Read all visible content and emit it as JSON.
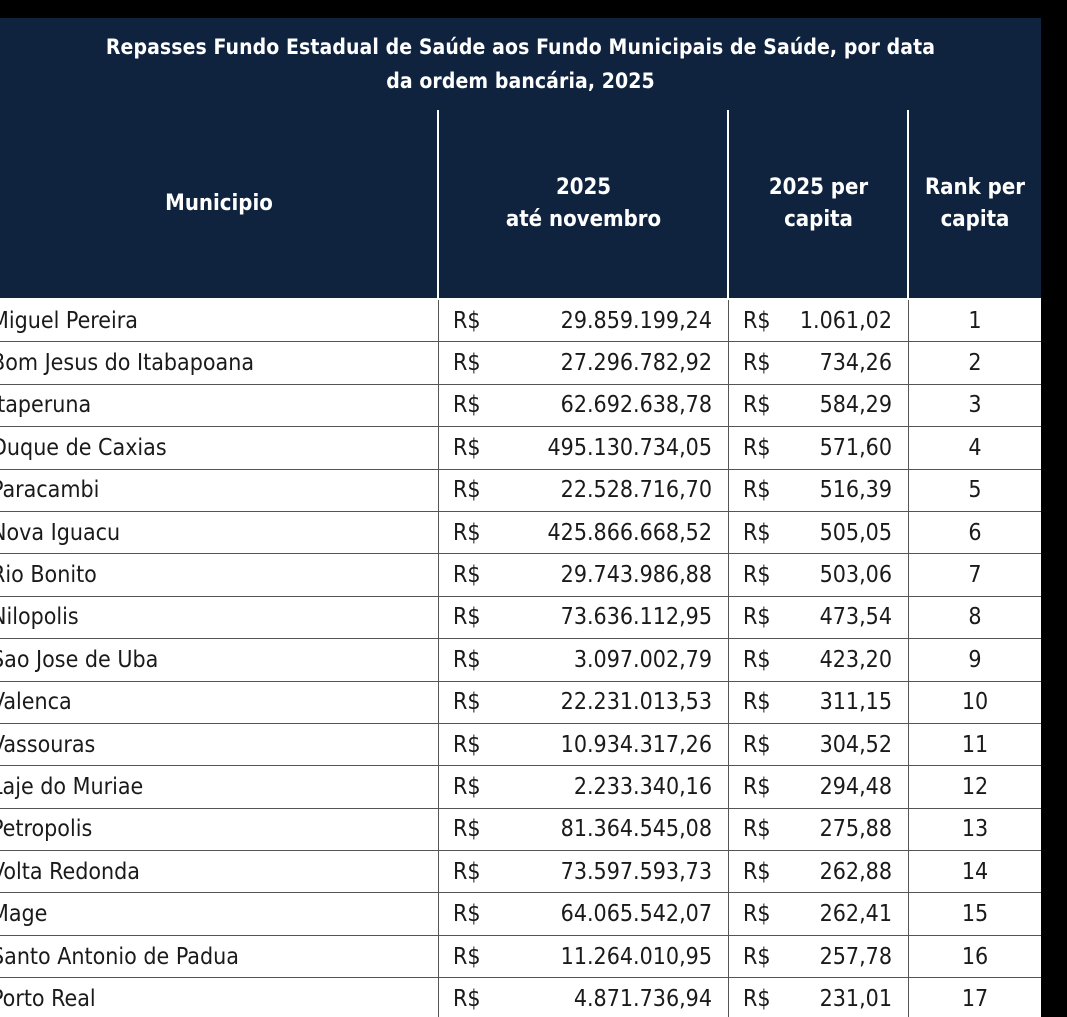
{
  "title_line1": "Repasses Fundo Estadual de Saúde aos Fundo Municipais de Saúde, por data",
  "title_line2": "da ordem bancária, 2025",
  "columns": {
    "municipio": "Municipio",
    "total": "2025\naté novembro",
    "per_capita": "2025 per\ncapita",
    "rank": "Rank per\ncapita"
  },
  "currency": "R$",
  "rows": [
    {
      "municipio": "Miguel Pereira",
      "total": "29.859.199,24",
      "per_capita": "1.061,02",
      "rank": "1"
    },
    {
      "municipio": "Bom Jesus do Itabapoana",
      "total": "27.296.782,92",
      "per_capita": "734,26",
      "rank": "2"
    },
    {
      "municipio": "Itaperuna",
      "total": "62.692.638,78",
      "per_capita": "584,29",
      "rank": "3"
    },
    {
      "municipio": "Duque de Caxias",
      "total": "495.130.734,05",
      "per_capita": "571,60",
      "rank": "4"
    },
    {
      "municipio": "Paracambi",
      "total": "22.528.716,70",
      "per_capita": "516,39",
      "rank": "5"
    },
    {
      "municipio": "Nova Iguacu",
      "total": "425.866.668,52",
      "per_capita": "505,05",
      "rank": "6"
    },
    {
      "municipio": "Rio Bonito",
      "total": "29.743.986,88",
      "per_capita": "503,06",
      "rank": "7"
    },
    {
      "municipio": "Nilopolis",
      "total": "73.636.112,95",
      "per_capita": "473,54",
      "rank": "8"
    },
    {
      "municipio": "Sao Jose de Uba",
      "total": "3.097.002,79",
      "per_capita": "423,20",
      "rank": "9"
    },
    {
      "municipio": "Valenca",
      "total": "22.231.013,53",
      "per_capita": "311,15",
      "rank": "10"
    },
    {
      "municipio": "Vassouras",
      "total": "10.934.317,26",
      "per_capita": "304,52",
      "rank": "11"
    },
    {
      "municipio": "Laje do Muriae",
      "total": "2.233.340,16",
      "per_capita": "294,48",
      "rank": "12"
    },
    {
      "municipio": "Petropolis",
      "total": "81.364.545,08",
      "per_capita": "275,88",
      "rank": "13"
    },
    {
      "municipio": "Volta Redonda",
      "total": "73.597.593,73",
      "per_capita": "262,88",
      "rank": "14"
    },
    {
      "municipio": "Mage",
      "total": "64.065.542,07",
      "per_capita": "262,41",
      "rank": "15"
    },
    {
      "municipio": "Santo Antonio de Padua",
      "total": "11.264.010,95",
      "per_capita": "257,78",
      "rank": "16"
    },
    {
      "municipio": "Porto Real",
      "total": "4.871.736,94",
      "per_capita": "231,01",
      "rank": "17"
    }
  ]
}
